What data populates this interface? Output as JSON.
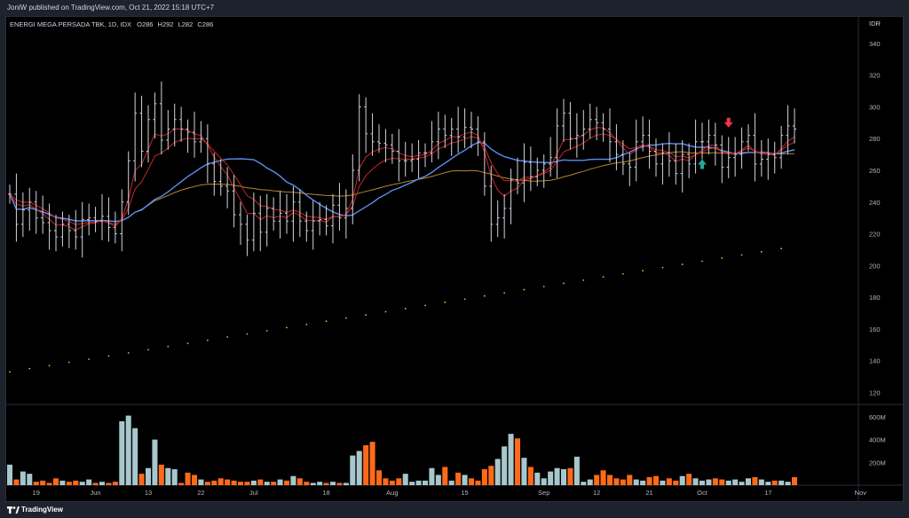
{
  "header": {
    "publish_line": "JoniW published on TradingView.com, Oct 21, 2022 15:18 UTC+7"
  },
  "footer": {
    "brand": "TradingView"
  },
  "chart_data": {
    "type": "ohlc",
    "symbol_line": "ENERGI MEGA PERSADA TBK, 1D, IDX",
    "ohlc_labels": {
      "o": "O",
      "h": "H",
      "l": "L",
      "c": "C"
    },
    "ohlc_values": {
      "o": "286",
      "h": "292",
      "l": "282",
      "c": "286"
    },
    "currency": "IDR",
    "price_axis": {
      "ticks": [
        340,
        320,
        300,
        280,
        260,
        240,
        220,
        200,
        180,
        160,
        140,
        120
      ],
      "range": [
        113,
        350
      ]
    },
    "volume_axis": {
      "ticks": [
        "600M",
        "400M",
        "200M"
      ],
      "tick_values": [
        600,
        400,
        200
      ],
      "unit": "M"
    },
    "time_axis_labels": [
      "19",
      "Jun",
      "13",
      "22",
      "Jul",
      "18",
      "Aug",
      "15",
      "Sep",
      "12",
      "21",
      "Oct",
      "17",
      "Nov"
    ],
    "colors": {
      "up_volume": "#a8c7cc",
      "down_volume": "#ff6a1a",
      "sma_fast": "#5b8ff0",
      "sma_slow": "#b8862b",
      "dotted": "#f0b429",
      "ribbon": "#c62828",
      "arrow_up": "#26a69a",
      "arrow_down": "#f23645"
    },
    "closes": [
      245,
      226,
      235,
      240,
      230,
      227,
      222,
      218,
      226,
      222,
      218,
      229,
      230,
      228,
      231,
      224,
      220,
      240,
      266,
      296,
      272,
      292,
      302,
      279,
      286,
      292,
      286,
      284,
      278,
      280,
      264,
      253,
      250,
      247,
      232,
      226,
      216,
      233,
      221,
      236,
      228,
      233,
      228,
      240,
      228,
      222,
      228,
      229,
      225,
      238,
      230,
      236,
      260,
      300,
      283,
      278,
      277,
      276,
      272,
      266,
      266,
      267,
      271,
      271,
      278,
      286,
      282,
      286,
      281,
      287,
      286,
      278,
      250,
      226,
      230,
      236,
      254,
      252,
      265,
      256,
      260,
      264,
      268,
      288,
      296,
      280,
      282,
      286,
      292,
      290,
      286,
      278,
      270,
      264,
      262,
      278,
      282,
      272,
      264,
      271,
      266,
      258,
      270,
      264,
      278,
      278,
      282,
      276,
      262,
      268,
      270,
      278,
      282,
      264,
      267,
      270,
      268,
      282,
      288,
      286
    ],
    "volumes": [
      180,
      50,
      120,
      100,
      30,
      40,
      20,
      60,
      40,
      30,
      40,
      30,
      50,
      20,
      30,
      20,
      30,
      560,
      610,
      500,
      100,
      150,
      400,
      180,
      150,
      140,
      20,
      110,
      90,
      50,
      30,
      40,
      60,
      50,
      40,
      30,
      30,
      40,
      50,
      30,
      30,
      50,
      40,
      80,
      60,
      30,
      20,
      30,
      20,
      30,
      20,
      20,
      260,
      300,
      350,
      380,
      130,
      60,
      40,
      60,
      100,
      30,
      40,
      40,
      150,
      90,
      160,
      40,
      110,
      90,
      60,
      40,
      140,
      170,
      230,
      340,
      450,
      410,
      240,
      160,
      110,
      60,
      120,
      150,
      140,
      150,
      250,
      30,
      50,
      90,
      130,
      90,
      60,
      50,
      90,
      50,
      40,
      70,
      80,
      40,
      60,
      40,
      80,
      100,
      60,
      40,
      50,
      60,
      50,
      40,
      50,
      30,
      60,
      70,
      50,
      30,
      40,
      40,
      30,
      70
    ]
  }
}
